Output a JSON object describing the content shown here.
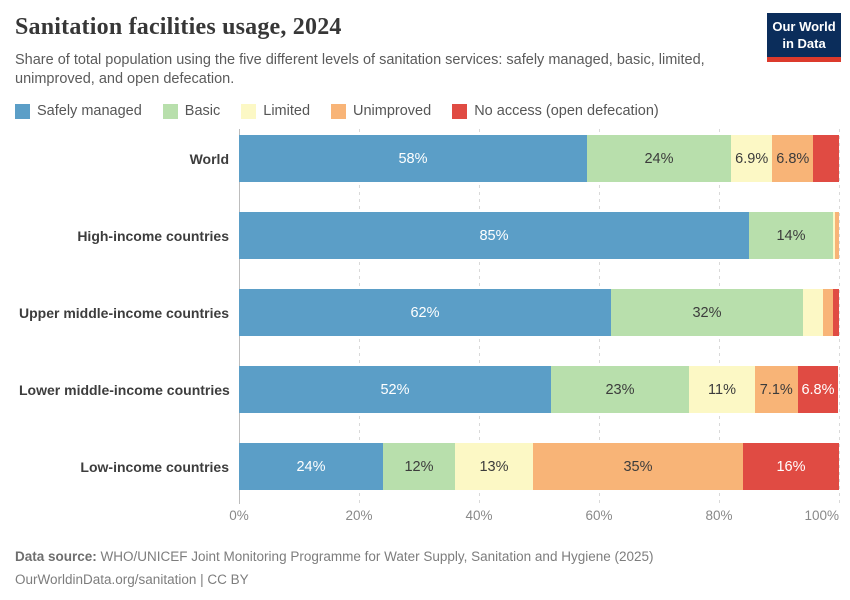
{
  "header": {
    "title": "Sanitation facilities usage, 2024",
    "subtitle": "Share of total population using the five different levels of sanitation services: safely managed, basic, limited, unimproved, and open defecation.",
    "logo": {
      "line1": "Our World",
      "line2": "in Data"
    }
  },
  "chart_data": {
    "type": "bar",
    "stacked": true,
    "orientation": "horizontal",
    "title": "Sanitation facilities usage, 2024",
    "categories": [
      "World",
      "High-income countries",
      "Upper middle-income countries",
      "Lower middle-income countries",
      "Low-income countries"
    ],
    "series": [
      {
        "name": "Safely managed",
        "color": "#5b9ec7",
        "label_color": "#ffffff",
        "values": [
          58,
          85,
          62,
          52,
          24
        ],
        "labels": [
          "58%",
          "85%",
          "62%",
          "52%",
          "24%"
        ]
      },
      {
        "name": "Basic",
        "color": "#b8dfac",
        "label_color": "#3c3c3c",
        "values": [
          24,
          14,
          32,
          23,
          12
        ],
        "labels": [
          "24%",
          "14%",
          "32%",
          "23%",
          "12%"
        ]
      },
      {
        "name": "Limited",
        "color": "#fcf8c5",
        "label_color": "#3c3c3c",
        "values": [
          6.9,
          0.4,
          3.3,
          11,
          13
        ],
        "labels": [
          "6.9%",
          "",
          "",
          "11%",
          "13%"
        ]
      },
      {
        "name": "Unimproved",
        "color": "#f8b477",
        "label_color": "#3c3c3c",
        "values": [
          6.8,
          0.8,
          1.7,
          7.1,
          35
        ],
        "labels": [
          "6.8%",
          "",
          "",
          "7.1%",
          "35%"
        ]
      },
      {
        "name": "No access (open defecation)",
        "color": "#e04b43",
        "label_color": "#ffffff",
        "values": [
          4.3,
          0,
          1.0,
          6.8,
          16
        ],
        "labels": [
          "",
          "",
          "",
          "6.8%",
          "16%"
        ]
      }
    ],
    "xlabel": "",
    "xlim": [
      0,
      100
    ],
    "xticks": [
      "0%",
      "20%",
      "40%",
      "60%",
      "80%",
      "100%"
    ],
    "grid": true,
    "legend_position": "top"
  },
  "footer": {
    "source_label": "Data source:",
    "source_text": " WHO/UNICEF Joint Monitoring Programme for Water Supply, Sanitation and Hygiene (2025)",
    "link_text": "OurWorldinData.org/sanitation | CC BY"
  }
}
